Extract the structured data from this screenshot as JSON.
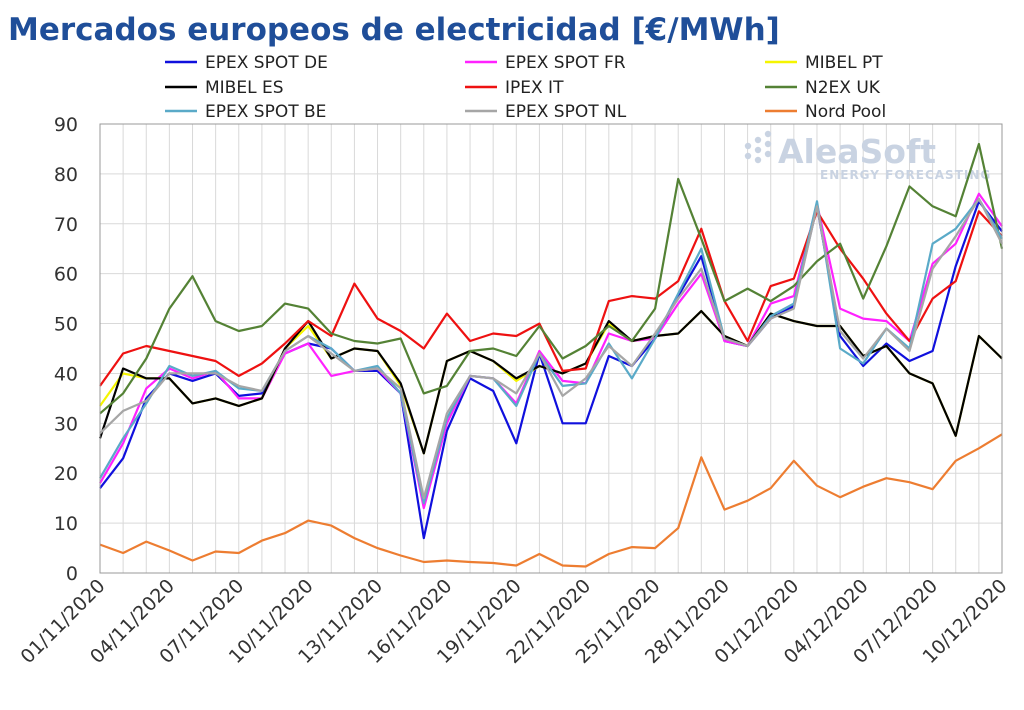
{
  "chart_data": {
    "type": "line",
    "title": "Mercados europeos de electricidad [€/MWh]",
    "xlabel": "",
    "ylabel": "",
    "ylim": [
      0,
      90
    ],
    "yticks": [
      0,
      10,
      20,
      30,
      40,
      50,
      60,
      70,
      80,
      90
    ],
    "grid": "horizontal and vertical",
    "legend": "top",
    "x": [
      "01/11/2020",
      "02/11/2020",
      "03/11/2020",
      "04/11/2020",
      "05/11/2020",
      "06/11/2020",
      "07/11/2020",
      "08/11/2020",
      "09/11/2020",
      "10/11/2020",
      "11/11/2020",
      "12/11/2020",
      "13/11/2020",
      "14/11/2020",
      "15/11/2020",
      "16/11/2020",
      "17/11/2020",
      "18/11/2020",
      "19/11/2020",
      "20/11/2020",
      "21/11/2020",
      "22/11/2020",
      "23/11/2020",
      "24/11/2020",
      "25/11/2020",
      "26/11/2020",
      "27/11/2020",
      "28/11/2020",
      "29/11/2020",
      "30/11/2020",
      "01/12/2020",
      "02/12/2020",
      "03/12/2020",
      "04/12/2020",
      "05/12/2020",
      "06/12/2020",
      "07/12/2020",
      "08/12/2020",
      "09/12/2020",
      "10/12/2020"
    ],
    "xtick_labels": [
      "01/11/2020",
      "04/11/2020",
      "07/11/2020",
      "10/11/2020",
      "13/11/2020",
      "16/11/2020",
      "19/11/2020",
      "22/11/2020",
      "25/11/2020",
      "28/11/2020",
      "01/12/2020",
      "04/12/2020",
      "07/12/2020",
      "10/12/2020"
    ],
    "series": [
      {
        "name": "EPEX SPOT DE",
        "color": "#1010dd",
        "values": [
          17,
          23,
          35,
          40,
          38.5,
          40,
          35.5,
          36,
          44,
          46,
          45,
          40.5,
          40.5,
          36,
          7,
          28.5,
          39,
          36.5,
          26,
          44,
          30,
          30,
          43.5,
          41.5,
          47,
          55.5,
          63.5,
          46.5,
          45.5,
          51,
          53.5,
          73.5,
          47.5,
          41.5,
          46,
          42.5,
          44.5,
          61.5,
          74.5,
          68.5
        ]
      },
      {
        "name": "EPEX SPOT FR",
        "color": "#ff22ff",
        "values": [
          18,
          26,
          37,
          41,
          39,
          40.5,
          35,
          35,
          44,
          46,
          39.5,
          40.5,
          41,
          36,
          13,
          30,
          39.5,
          39,
          34,
          44.5,
          38.5,
          38,
          48,
          46.5,
          47,
          54,
          60,
          46.5,
          45.5,
          54,
          55.5,
          74,
          53,
          51,
          50.5,
          46.5,
          62,
          66,
          76,
          69.5
        ]
      },
      {
        "name": "MIBEL PT",
        "color": "#f5f500",
        "values": [
          33.5,
          40,
          39,
          39,
          34,
          35,
          33.5,
          35,
          45,
          49.5,
          43,
          45,
          44.5,
          37.5,
          24,
          42.5,
          44.5,
          42.5,
          38.5,
          41.5,
          40,
          42,
          50,
          46.5,
          47.5,
          48,
          52.5,
          47.5,
          45.5,
          52,
          50.5,
          49.5,
          49.5,
          43.5,
          45.5,
          40,
          38,
          27.5,
          47.5,
          43
        ]
      },
      {
        "name": "MIBEL ES",
        "color": "#000000",
        "values": [
          27,
          41,
          39,
          39,
          34,
          35,
          33.5,
          35,
          45,
          50.5,
          43,
          45,
          44.5,
          38,
          24,
          42.5,
          44.5,
          42.5,
          39,
          41.5,
          40,
          42,
          50.5,
          46.5,
          47.5,
          48,
          52.5,
          47.5,
          45.5,
          52,
          50.5,
          49.5,
          49.5,
          43.5,
          45.5,
          40,
          38,
          27.5,
          47.5,
          43
        ]
      },
      {
        "name": "IPEX IT",
        "color": "#ee1111",
        "values": [
          37.5,
          44,
          45.5,
          44.5,
          43.5,
          42.5,
          39.5,
          42,
          46,
          50.5,
          47.5,
          58,
          51,
          48.5,
          45,
          52,
          46.5,
          48,
          47.5,
          50,
          40.5,
          41,
          54.5,
          55.5,
          55,
          58.5,
          69,
          54.5,
          46.5,
          57.5,
          59,
          72.5,
          65,
          59,
          52,
          46.5,
          55,
          58.5,
          72.5,
          67.5
        ]
      },
      {
        "name": "N2EX UK",
        "color": "#548235",
        "values": [
          32,
          36,
          43,
          53,
          59.5,
          50.5,
          48.5,
          49.5,
          54,
          53,
          48,
          46.5,
          46,
          47,
          36,
          37.5,
          44.5,
          45,
          43.5,
          49.5,
          43,
          45.5,
          49.5,
          46.5,
          53,
          79,
          67,
          54.5,
          57,
          54.5,
          57.5,
          62.5,
          66,
          55,
          65.5,
          77.5,
          73.5,
          71.5,
          86,
          65
        ]
      },
      {
        "name": "EPEX SPOT BE",
        "color": "#5aaac8",
        "values": [
          19,
          27,
          34,
          41.5,
          39.5,
          40.5,
          37,
          36.5,
          44.5,
          47.5,
          45,
          40.5,
          41.5,
          36,
          14,
          31,
          39.5,
          39,
          33.5,
          44,
          37.5,
          38,
          46,
          39,
          47,
          56,
          65,
          47,
          45.5,
          51.5,
          54,
          74.5,
          45,
          42,
          49,
          45,
          66,
          69,
          75,
          67
        ]
      },
      {
        "name": "EPEX SPOT NL",
        "color": "#a6a6a6",
        "values": [
          28,
          32.5,
          34.5,
          40,
          40,
          40,
          37.5,
          36.5,
          44.5,
          47.5,
          44,
          40.5,
          41,
          37,
          15,
          32,
          39.5,
          39,
          36,
          44,
          35.5,
          39,
          45.5,
          41.5,
          48,
          55,
          61,
          47,
          45.5,
          51,
          53,
          73.5,
          48.5,
          43,
          49,
          44.5,
          61,
          67.5,
          75,
          66
        ]
      },
      {
        "name": "Nord Pool",
        "color": "#ed7d31",
        "values": [
          5.7,
          4,
          6.3,
          4.5,
          2.5,
          4.3,
          4,
          6.5,
          8,
          10.5,
          9.5,
          7,
          5,
          3.5,
          2.2,
          2.5,
          2.2,
          2,
          1.5,
          3.8,
          1.5,
          1.3,
          3.8,
          5.2,
          5,
          9,
          23.2,
          12.7,
          14.5,
          17,
          22.5,
          17.5,
          15.2,
          17.3,
          19,
          18.2,
          16.8,
          22.5,
          25,
          27.8
        ]
      }
    ]
  },
  "watermark": {
    "brand": "AleaSoft",
    "tagline": "ENERGY FORECASTING"
  }
}
